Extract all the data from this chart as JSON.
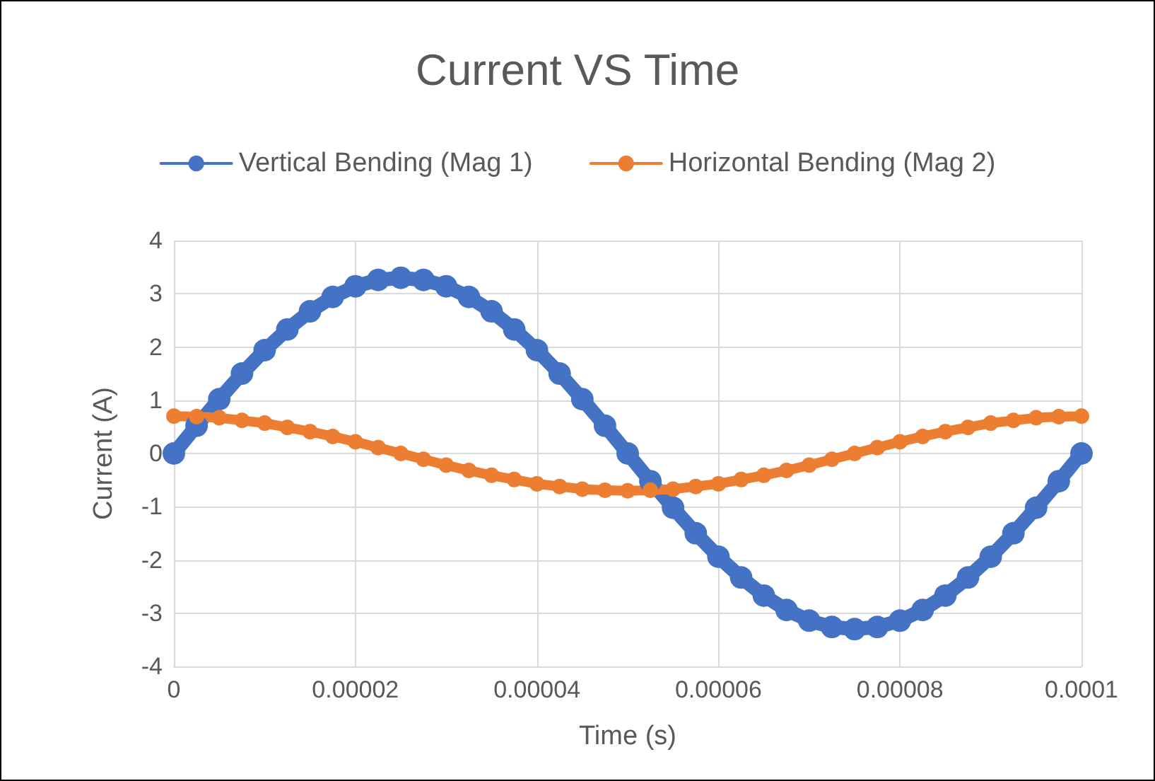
{
  "chart_data": {
    "type": "line",
    "title": "Current VS Time",
    "xlabel": "Time (s)",
    "ylabel": "Current (A)",
    "x": [
      0,
      2.5e-06,
      5e-06,
      7.5e-06,
      1e-05,
      1.25e-05,
      1.5e-05,
      1.75e-05,
      2e-05,
      2.25e-05,
      2.5e-05,
      2.75e-05,
      3e-05,
      3.25e-05,
      3.5e-05,
      3.75e-05,
      4e-05,
      4.25e-05,
      4.5e-05,
      4.75e-05,
      5e-05,
      5.25e-05,
      5.5e-05,
      5.75e-05,
      6e-05,
      6.25e-05,
      6.5e-05,
      6.75e-05,
      7e-05,
      7.25e-05,
      7.5e-05,
      7.75e-05,
      8e-05,
      8.25e-05,
      8.5e-05,
      8.75e-05,
      9e-05,
      9.25e-05,
      9.5e-05,
      9.75e-05,
      0.0001
    ],
    "series": [
      {
        "name": "Vertical Bending (Mag 1)",
        "color": "#4472c4",
        "values": [
          0,
          0.52,
          1.02,
          1.5,
          1.94,
          2.33,
          2.67,
          2.94,
          3.14,
          3.26,
          3.3,
          3.26,
          3.14,
          2.94,
          2.67,
          2.33,
          1.94,
          1.5,
          1.02,
          0.52,
          0,
          -0.52,
          -1.02,
          -1.5,
          -1.94,
          -2.33,
          -2.67,
          -2.94,
          -3.14,
          -3.26,
          -3.3,
          -3.26,
          -3.14,
          -2.94,
          -2.67,
          -2.33,
          -1.94,
          -1.5,
          -1.02,
          -0.52,
          0
        ]
      },
      {
        "name": "Horizontal Bending (Mag 2)",
        "color": "#ed7d31",
        "values": [
          0.7,
          0.69,
          0.67,
          0.62,
          0.57,
          0.49,
          0.41,
          0.32,
          0.22,
          0.11,
          0,
          -0.11,
          -0.22,
          -0.32,
          -0.41,
          -0.49,
          -0.57,
          -0.62,
          -0.67,
          -0.69,
          -0.7,
          -0.69,
          -0.67,
          -0.62,
          -0.57,
          -0.49,
          -0.41,
          -0.32,
          -0.22,
          -0.11,
          0,
          0.11,
          0.22,
          0.32,
          0.41,
          0.49,
          0.57,
          0.62,
          0.67,
          0.69,
          0.7
        ]
      }
    ],
    "xlim": [
      0,
      0.0001
    ],
    "xticks": [
      0,
      {
        "value": 2e-05,
        "label": "0.00002"
      },
      {
        "value": 4e-05,
        "label": "0.00004"
      },
      {
        "value": 6e-05,
        "label": "0.00006"
      },
      {
        "value": 8e-05,
        "label": "0.00008"
      },
      0.0001
    ],
    "ylim": [
      -4,
      4
    ],
    "yticks": [
      -4,
      -3,
      -2,
      -1,
      0,
      1,
      2,
      3,
      4
    ],
    "grid": true,
    "legend": "top",
    "marker": "circle",
    "line_style": "solid"
  }
}
